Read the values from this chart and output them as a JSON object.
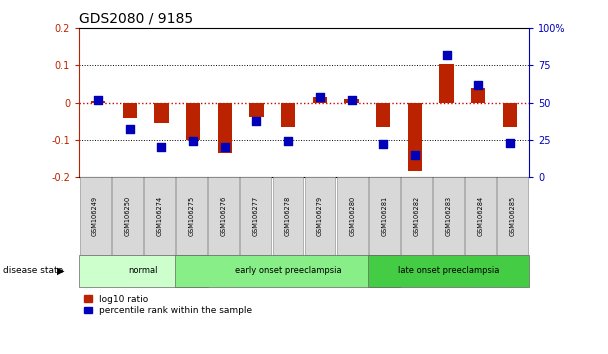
{
  "title": "GDS2080 / 9185",
  "samples": [
    "GSM106249",
    "GSM106250",
    "GSM106274",
    "GSM106275",
    "GSM106276",
    "GSM106277",
    "GSM106278",
    "GSM106279",
    "GSM106280",
    "GSM106281",
    "GSM106282",
    "GSM106283",
    "GSM106284",
    "GSM106285"
  ],
  "log10_ratio": [
    0.005,
    -0.04,
    -0.055,
    -0.1,
    -0.135,
    -0.038,
    -0.065,
    0.015,
    0.01,
    -0.065,
    -0.185,
    0.105,
    0.04,
    -0.065
  ],
  "percentile_rank": [
    52,
    32,
    20,
    24,
    20,
    38,
    24,
    54,
    52,
    22,
    15,
    82,
    62,
    23
  ],
  "disease_groups": [
    {
      "label": "normal",
      "start": 0,
      "end": 3,
      "color": "#ccffcc"
    },
    {
      "label": "early onset preeclampsia",
      "start": 3,
      "end": 9,
      "color": "#88ee88"
    },
    {
      "label": "late onset preeclampsia",
      "start": 9,
      "end": 13,
      "color": "#44cc44"
    }
  ],
  "ylim_left": [
    -0.2,
    0.2
  ],
  "ylim_right": [
    0,
    100
  ],
  "bar_color_red": "#bb2200",
  "bar_color_blue": "#0000bb",
  "zero_line_color": "#cc0000",
  "grid_color": "#000000",
  "bar_width": 0.45,
  "dot_size": 28,
  "bg_color": "#ffffff",
  "label_box_color": "#d8d8d8",
  "label_box_edge": "#999999"
}
